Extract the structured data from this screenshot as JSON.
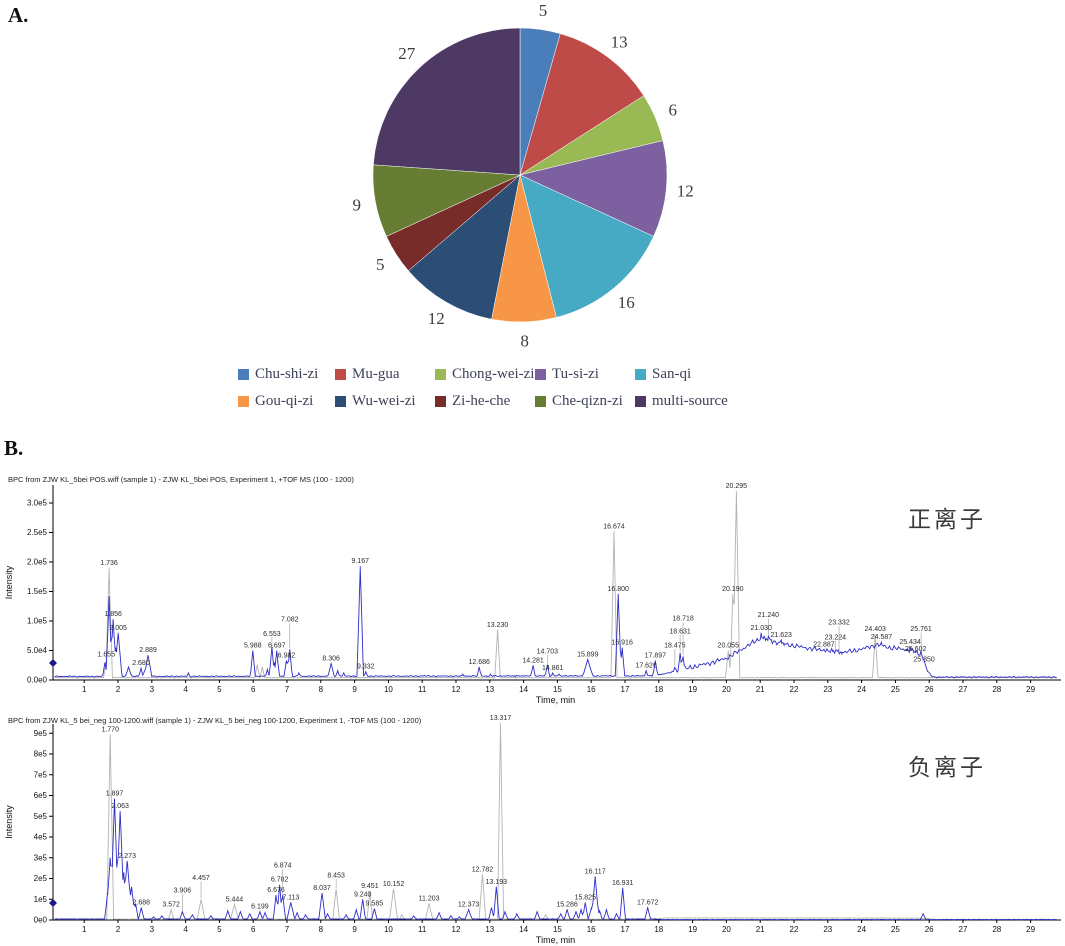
{
  "panel_a": {
    "letter": "A."
  },
  "panel_b": {
    "letter": "B."
  },
  "chart_data": [
    {
      "id": "herb-source-pie",
      "type": "pie",
      "start_angle_deg": 0,
      "direction": "clockwise",
      "total": 113,
      "slices": [
        {
          "label": "Chu-shi-zi",
          "value": 5,
          "color": "#4A7EBB"
        },
        {
          "label": "Mu-gua",
          "value": 13,
          "color": "#BE4B48"
        },
        {
          "label": "Chong-wei-zi",
          "value": 6,
          "color": "#98B954"
        },
        {
          "label": "Tu-si-zi",
          "value": 12,
          "color": "#7D60A0"
        },
        {
          "label": "San-qi",
          "value": 16,
          "color": "#46AAC5"
        },
        {
          "label": "Gou-qi-zi",
          "value": 8,
          "color": "#F79646"
        },
        {
          "label": "Wu-wei-zi",
          "value": 12,
          "color": "#2C4D75"
        },
        {
          "label": "Zi-he-che",
          "value": 5,
          "color": "#772C2A"
        },
        {
          "label": "Che-qizn-zi",
          "value": 9,
          "color": "#667D33"
        },
        {
          "label": "multi-source",
          "value": 27,
          "color": "#4D3963"
        }
      ],
      "value_label_color": "#3d3d3d",
      "legend_position": "bottom"
    },
    {
      "id": "bpc-positive",
      "type": "line",
      "title": "BPC from ZJW KL_5bei POS.wiff (sample 1) - ZJW KL_5bei POS, Experiment 1, +TOF MS (100 - 1200)",
      "ion_mode_label": "正离子",
      "xlabel": "Time, min",
      "ylabel": "Intensity",
      "xlim": [
        0,
        30
      ],
      "xticks": [
        1,
        2,
        3,
        4,
        5,
        6,
        7,
        8,
        9,
        10,
        11,
        12,
        13,
        14,
        15,
        16,
        17,
        18,
        19,
        20,
        21,
        22,
        23,
        24,
        25,
        26,
        27,
        28,
        29
      ],
      "yticks": [
        "0.0e0",
        "5.0e4",
        "1.0e5",
        "1.5e5",
        "2.0e5",
        "2.5e5",
        "3.0e5"
      ],
      "ytick_values": [
        0,
        0.5,
        1,
        1.5,
        2,
        2.5,
        3
      ],
      "intensity_unit": "1e5",
      "trace_color": "#2E2EC8",
      "overlay_color": "#B3B3B3",
      "label_format": "3dp",
      "peaks": [
        {
          "t": 1.655,
          "h": 0.35,
          "s": "g"
        },
        {
          "t": 1.736,
          "h": 1.9,
          "s": "g",
          "w": 0.1
        },
        {
          "t": 1.856,
          "h": 1.03,
          "s": "b",
          "w": 0.1
        },
        {
          "t": 2.005,
          "h": 0.8,
          "s": "b",
          "w": 0.12
        },
        {
          "t": 2.68,
          "h": 0.2,
          "s": "b"
        },
        {
          "t": 2.889,
          "h": 0.42,
          "s": "b",
          "w": 0.13
        },
        {
          "t": 5.988,
          "h": 0.5,
          "s": "b"
        },
        {
          "t": 6.553,
          "h": 0.56,
          "s": "b"
        },
        {
          "t": 6.697,
          "h": 0.5,
          "s": "b"
        },
        {
          "t": 6.982,
          "h": 0.33,
          "s": "b"
        },
        {
          "t": 7.082,
          "h": 0.52,
          "s": "b"
        },
        {
          "t": 8.306,
          "h": 0.28,
          "s": "b",
          "w": 0.12
        },
        {
          "t": 9.167,
          "h": 1.93,
          "s": "b",
          "w": 0.1
        },
        {
          "t": 9.332,
          "h": 0.14,
          "s": "b"
        },
        {
          "t": 12.686,
          "h": 0.22,
          "s": "b"
        },
        {
          "t": 13.23,
          "h": 0.85,
          "s": "g"
        },
        {
          "t": 14.281,
          "h": 0.25,
          "s": "b"
        },
        {
          "t": 14.703,
          "h": 0.26,
          "s": "b"
        },
        {
          "t": 14.861,
          "h": 0.12,
          "s": "b"
        },
        {
          "t": 15.899,
          "h": 0.35,
          "s": "b",
          "w": 0.18
        },
        {
          "t": 16.674,
          "h": 2.52,
          "s": "g",
          "w": 0.09
        },
        {
          "t": 16.8,
          "h": 1.46,
          "s": "b",
          "w": 0.09
        },
        {
          "t": 16.916,
          "h": 0.55,
          "s": "b"
        },
        {
          "t": 17.626,
          "h": 0.16,
          "s": "b"
        },
        {
          "t": 17.897,
          "h": 0.33,
          "s": "b"
        },
        {
          "t": 18.475,
          "h": 0.22,
          "s": "b"
        },
        {
          "t": 18.631,
          "h": 0.46,
          "s": "b"
        },
        {
          "t": 18.718,
          "h": 0.4,
          "s": "b"
        },
        {
          "t": 20.055,
          "h": 0.5,
          "s": "g"
        },
        {
          "t": 20.19,
          "h": 1.46,
          "s": "g"
        },
        {
          "t": 20.295,
          "h": 3.2,
          "s": "g",
          "w": 0.1
        },
        {
          "t": 21.03,
          "h": 0.8,
          "s": "b"
        },
        {
          "t": 21.24,
          "h": 0.74,
          "s": "b"
        },
        {
          "t": 21.623,
          "h": 0.68,
          "s": "b"
        },
        {
          "t": 22.887,
          "h": 0.52,
          "s": "b"
        },
        {
          "t": 23.224,
          "h": 0.5,
          "s": "b"
        },
        {
          "t": 23.332,
          "h": 0.47,
          "s": "b"
        },
        {
          "t": 24.403,
          "h": 0.78,
          "s": "g"
        },
        {
          "t": 24.587,
          "h": 0.64,
          "s": "b"
        },
        {
          "t": 25.434,
          "h": 0.56,
          "s": "b"
        },
        {
          "t": 25.602,
          "h": 0.44,
          "s": "b"
        },
        {
          "t": 25.761,
          "h": 0.5,
          "s": "b"
        },
        {
          "t": 25.85,
          "h": 0.26,
          "s": "b"
        }
      ],
      "extra_peaks": [
        {
          "t": 1.615,
          "h": 0.3,
          "s": "b"
        },
        {
          "t": 1.736,
          "h": 1.42,
          "s": "b",
          "w": 0.09
        },
        {
          "t": 1.93,
          "h": 0.55,
          "s": "b"
        },
        {
          "t": 2.31,
          "h": 0.22,
          "s": "b",
          "w": 0.12
        },
        {
          "t": 2.78,
          "h": 0.15,
          "s": "b"
        },
        {
          "t": 4.08,
          "h": 0.12,
          "s": "b"
        },
        {
          "t": 6.12,
          "h": 0.26,
          "s": "g"
        },
        {
          "t": 6.27,
          "h": 0.22,
          "s": "g"
        },
        {
          "t": 6.42,
          "h": 0.18,
          "s": "b"
        },
        {
          "t": 6.62,
          "h": 0.3,
          "s": "b"
        },
        {
          "t": 7.0,
          "h": 0.3,
          "s": "b"
        },
        {
          "t": 7.35,
          "h": 0.12,
          "s": "b"
        },
        {
          "t": 8.5,
          "h": 0.16,
          "s": "b"
        },
        {
          "t": 8.68,
          "h": 0.12,
          "s": "b"
        },
        {
          "t": 11.06,
          "h": 0.08,
          "s": "b"
        },
        {
          "t": 12.2,
          "h": 0.1,
          "s": "b"
        },
        {
          "t": 13.02,
          "h": 0.1,
          "s": "b"
        },
        {
          "t": 13.78,
          "h": 0.08,
          "s": "b"
        },
        {
          "t": 15.05,
          "h": 0.1,
          "s": "b"
        },
        {
          "t": 15.25,
          "h": 0.08,
          "s": "b"
        }
      ],
      "envelope_blue": [
        [
          0,
          0.06
        ],
        [
          17.8,
          0.07
        ],
        [
          18.3,
          0.12
        ],
        [
          19.0,
          0.22
        ],
        [
          19.6,
          0.3
        ],
        [
          20.05,
          0.38
        ],
        [
          20.45,
          0.52
        ],
        [
          20.8,
          0.64
        ],
        [
          21.05,
          0.72
        ],
        [
          21.4,
          0.65
        ],
        [
          21.8,
          0.6
        ],
        [
          22.3,
          0.55
        ],
        [
          22.9,
          0.5
        ],
        [
          23.5,
          0.47
        ],
        [
          24.0,
          0.52
        ],
        [
          24.45,
          0.6
        ],
        [
          24.9,
          0.54
        ],
        [
          25.3,
          0.52
        ],
        [
          25.6,
          0.48
        ],
        [
          25.8,
          0.4
        ],
        [
          25.95,
          0.15
        ],
        [
          26.1,
          0.05
        ],
        [
          29.85,
          0.05
        ]
      ],
      "envelope_gray": [
        [
          0,
          0.04
        ],
        [
          29.85,
          0.04
        ]
      ],
      "noise": {
        "blue": {
          "thresh": 0.15,
          "hi": 0.05,
          "lo": 0.012
        },
        "gray": {
          "thresh": 0.15,
          "hi": 0.03,
          "lo": 0.008
        }
      }
    },
    {
      "id": "bpc-negative",
      "type": "line",
      "title": "BPC from ZJW KL_5 bei_neg 100-1200.wiff (sample 1) - ZJW KL_5 bei_neg 100-1200, Experiment 1, -TOF MS (100 - 1200)",
      "ion_mode_label": "负离子",
      "xlabel": "Time, min",
      "ylabel": "Intensity",
      "xlim": [
        0,
        30
      ],
      "xticks": [
        1,
        2,
        3,
        4,
        5,
        6,
        7,
        8,
        9,
        10,
        11,
        12,
        13,
        14,
        15,
        16,
        17,
        18,
        19,
        20,
        21,
        22,
        23,
        24,
        25,
        26,
        27,
        28,
        29
      ],
      "yticks": [
        "0e0",
        "1e5",
        "2e5",
        "3e5",
        "4e5",
        "5e5",
        "6e5",
        "7e5",
        "8e5",
        "9e5"
      ],
      "ytick_values": [
        0,
        1,
        2,
        3,
        4,
        5,
        6,
        7,
        8,
        9
      ],
      "intensity_unit": "1e5",
      "trace_color": "#2E2EC8",
      "overlay_color": "#B3B3B3",
      "label_format": "3dp",
      "peaks": [
        {
          "t": 1.77,
          "h": 8.95,
          "s": "g",
          "w": 0.1
        },
        {
          "t": 1.897,
          "h": 5.85,
          "s": "b",
          "w": 0.12
        },
        {
          "t": 2.063,
          "h": 5.25,
          "s": "b",
          "w": 0.13
        },
        {
          "t": 2.273,
          "h": 2.85,
          "s": "b",
          "w": 0.14
        },
        {
          "t": 2.688,
          "h": 0.6,
          "s": "b"
        },
        {
          "t": 3.572,
          "h": 0.5,
          "s": "g"
        },
        {
          "t": 3.906,
          "h": 0.4,
          "s": "b"
        },
        {
          "t": 4.457,
          "h": 1.0,
          "s": "g",
          "w": 0.12
        },
        {
          "t": 5.444,
          "h": 0.75,
          "s": "g",
          "w": 0.12
        },
        {
          "t": 6.199,
          "h": 0.4,
          "s": "b"
        },
        {
          "t": 6.676,
          "h": 1.2,
          "s": "b"
        },
        {
          "t": 6.782,
          "h": 1.7,
          "s": "b"
        },
        {
          "t": 6.874,
          "h": 1.2,
          "s": "b"
        },
        {
          "t": 7.113,
          "h": 0.85,
          "s": "b",
          "w": 0.12
        },
        {
          "t": 8.037,
          "h": 1.3,
          "s": "b",
          "w": 0.1
        },
        {
          "t": 8.453,
          "h": 1.5,
          "s": "g",
          "w": 0.1
        },
        {
          "t": 9.24,
          "h": 1.0,
          "s": "b"
        },
        {
          "t": 9.451,
          "h": 1.4,
          "s": "g"
        },
        {
          "t": 9.585,
          "h": 0.55,
          "s": "b"
        },
        {
          "t": 10.152,
          "h": 1.5,
          "s": "g",
          "w": 0.12
        },
        {
          "t": 11.203,
          "h": 0.8,
          "s": "g",
          "w": 0.11
        },
        {
          "t": 12.373,
          "h": 0.5,
          "s": "b",
          "w": 0.11
        },
        {
          "t": 12.782,
          "h": 2.2,
          "s": "g",
          "w": 0.1
        },
        {
          "t": 13.193,
          "h": 1.6,
          "s": "b"
        },
        {
          "t": 13.317,
          "h": 9.5,
          "s": "g",
          "w": 0.09
        },
        {
          "t": 15.286,
          "h": 0.5,
          "s": "b"
        },
        {
          "t": 15.825,
          "h": 0.85,
          "s": "b"
        },
        {
          "t": 16.117,
          "h": 2.1,
          "s": "b",
          "w": 0.11
        },
        {
          "t": 16.931,
          "h": 1.55,
          "s": "b"
        },
        {
          "t": 17.672,
          "h": 0.6,
          "s": "b"
        }
      ],
      "extra_peaks": [
        {
          "t": 1.69,
          "h": 1.3,
          "s": "b"
        },
        {
          "t": 1.77,
          "h": 3.0,
          "s": "b",
          "w": 0.12
        },
        {
          "t": 1.96,
          "h": 2.5,
          "s": "b",
          "w": 0.1
        },
        {
          "t": 2.17,
          "h": 2.3,
          "s": "b",
          "w": 0.1
        },
        {
          "t": 2.4,
          "h": 1.6,
          "s": "b",
          "w": 0.12
        },
        {
          "t": 2.52,
          "h": 0.8,
          "s": "b"
        },
        {
          "t": 3.05,
          "h": 0.15,
          "s": "b"
        },
        {
          "t": 3.3,
          "h": 0.2,
          "s": "b"
        },
        {
          "t": 4.2,
          "h": 0.25,
          "s": "b"
        },
        {
          "t": 4.75,
          "h": 0.2,
          "s": "b"
        },
        {
          "t": 5.25,
          "h": 0.45,
          "s": "b"
        },
        {
          "t": 5.62,
          "h": 0.4,
          "s": "b"
        },
        {
          "t": 5.9,
          "h": 0.3,
          "s": "b"
        },
        {
          "t": 6.35,
          "h": 0.35,
          "s": "b"
        },
        {
          "t": 7.3,
          "h": 0.35,
          "s": "b"
        },
        {
          "t": 7.55,
          "h": 0.25,
          "s": "b"
        },
        {
          "t": 8.2,
          "h": 0.3,
          "s": "b"
        },
        {
          "t": 8.75,
          "h": 0.25,
          "s": "b"
        },
        {
          "t": 9.05,
          "h": 0.5,
          "s": "b"
        },
        {
          "t": 10.4,
          "h": 0.25,
          "s": "g"
        },
        {
          "t": 10.75,
          "h": 0.2,
          "s": "b"
        },
        {
          "t": 11.5,
          "h": 0.35,
          "s": "b"
        },
        {
          "t": 11.85,
          "h": 0.2,
          "s": "b"
        },
        {
          "t": 12.1,
          "h": 0.15,
          "s": "b"
        },
        {
          "t": 13.05,
          "h": 0.6,
          "s": "b"
        },
        {
          "t": 13.45,
          "h": 0.4,
          "s": "b"
        },
        {
          "t": 13.8,
          "h": 0.3,
          "s": "b"
        },
        {
          "t": 14.4,
          "h": 0.4,
          "s": "b"
        },
        {
          "t": 14.65,
          "h": 0.25,
          "s": "g"
        },
        {
          "t": 15.1,
          "h": 0.3,
          "s": "b"
        },
        {
          "t": 15.55,
          "h": 0.4,
          "s": "b"
        },
        {
          "t": 15.7,
          "h": 0.5,
          "s": "b"
        },
        {
          "t": 16.0,
          "h": 0.55,
          "s": "b"
        },
        {
          "t": 16.25,
          "h": 0.45,
          "s": "b"
        },
        {
          "t": 16.45,
          "h": 0.5,
          "s": "b"
        },
        {
          "t": 16.75,
          "h": 0.3,
          "s": "b"
        },
        {
          "t": 25.82,
          "h": 0.3,
          "s": "b"
        }
      ],
      "envelope_blue": [
        [
          0,
          0.05
        ],
        [
          17.9,
          0.05
        ],
        [
          18.1,
          0.02
        ],
        [
          29.85,
          0.02
        ]
      ],
      "envelope_gray": [
        [
          0,
          0.04
        ],
        [
          17.9,
          0.04
        ],
        [
          18.2,
          0.1
        ],
        [
          25.6,
          0.09
        ],
        [
          25.95,
          0.08
        ],
        [
          26.1,
          0.035
        ],
        [
          29.85,
          0.035
        ]
      ],
      "noise": {
        "blue": {
          "thresh": 0.15,
          "hi": 0.04,
          "lo": 0.01
        },
        "gray": {
          "thresh": 0.06,
          "hi": 0.02,
          "lo": 0.008
        }
      }
    }
  ]
}
